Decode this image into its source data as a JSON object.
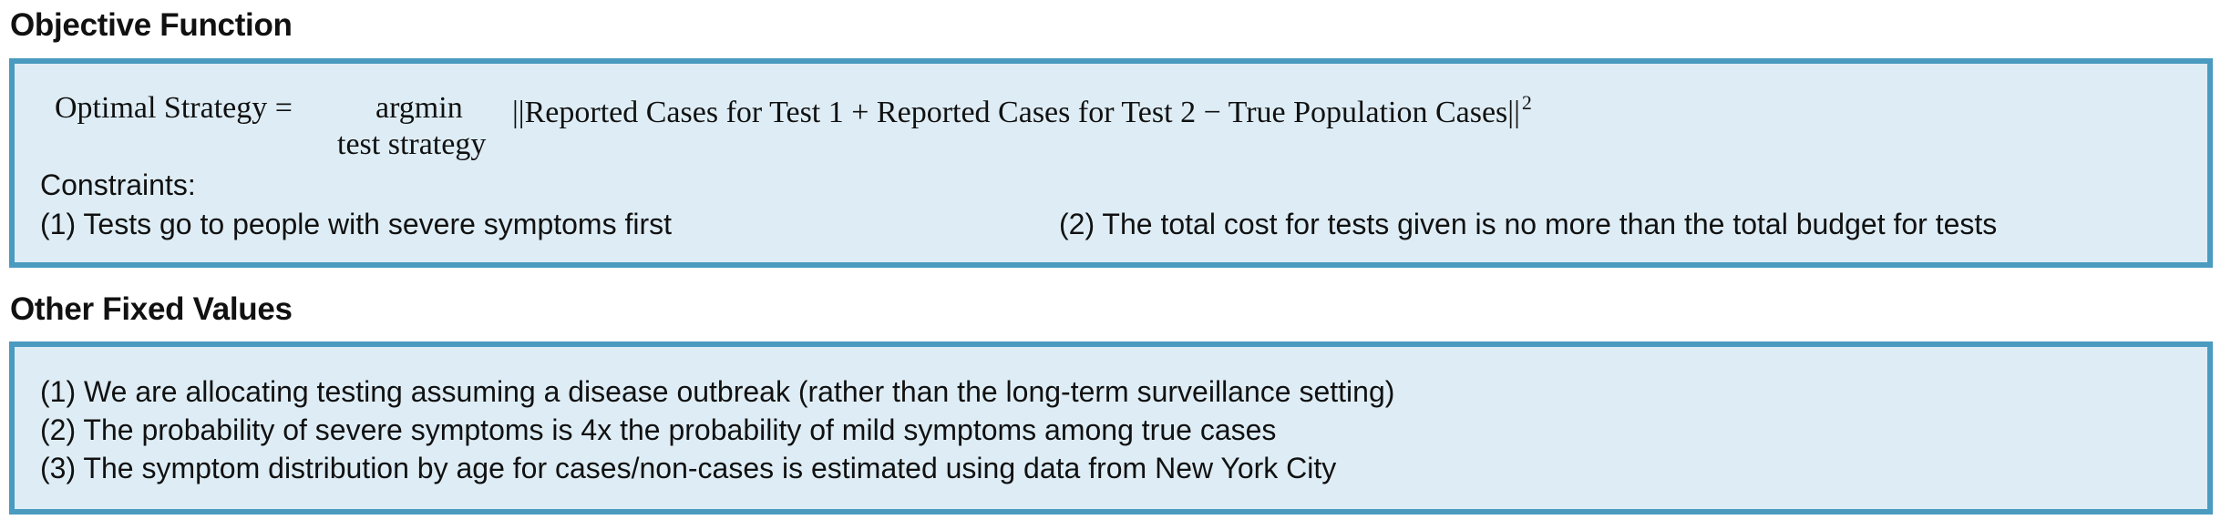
{
  "objective": {
    "title": "Objective Function",
    "formula": {
      "lhs": "Optimal Strategy =",
      "operator": "argmin",
      "operator_subscript": "test strategy",
      "rhs": "||Reported Cases for Test 1 + Reported Cases for Test 2 − True Population Cases||",
      "exponent": "2"
    },
    "constraints_label": "Constraints:",
    "constraints": [
      "(1) Tests go to people with severe symptoms first",
      "(2) The total cost for tests given is no more than the total budget for tests"
    ]
  },
  "fixed": {
    "title": "Other Fixed Values",
    "items": [
      "(1) We are allocating testing assuming a disease outbreak (rather than the long-term surveillance setting)",
      "(2) The probability of severe symptoms is 4x the probability of mild symptoms among true cases",
      "(3) The symptom distribution by age for cases/non-cases is estimated using data from New York City"
    ]
  },
  "colors": {
    "panel_border": "#4a9bbf",
    "panel_fill": "#deedf5"
  }
}
